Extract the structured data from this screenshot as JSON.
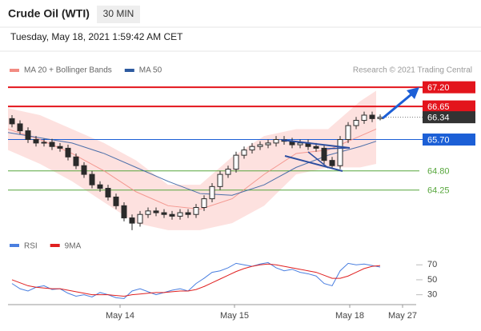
{
  "header": {
    "title": "Crude Oil (WTI)",
    "timeframe": "30 MIN",
    "timestamp": "Tuesday, May 18, 2021 1:59:42 AM CET",
    "credit": "Research © 2021 Trading Central"
  },
  "chart_data": [
    {
      "type": "candlestick",
      "candle_color": "#2a2a2a",
      "x": [
        0,
        1,
        2,
        3,
        4,
        5,
        6,
        7,
        8,
        9,
        10,
        11,
        12,
        13,
        14,
        15,
        16,
        17,
        18,
        19,
        20,
        21,
        22,
        23,
        24,
        25,
        26,
        27,
        28,
        29,
        30,
        31,
        32,
        33,
        34,
        35,
        36,
        37,
        38,
        39,
        40,
        41,
        42,
        43,
        44,
        45,
        46
      ],
      "open": [
        66.3,
        66.15,
        65.95,
        65.7,
        65.6,
        65.62,
        65.5,
        65.45,
        65.2,
        64.95,
        64.7,
        64.4,
        64.3,
        64.05,
        63.8,
        63.45,
        63.3,
        63.55,
        63.65,
        63.6,
        63.55,
        63.5,
        63.6,
        63.55,
        63.75,
        64.0,
        64.35,
        64.7,
        64.85,
        65.25,
        65.4,
        65.5,
        65.55,
        65.6,
        65.7,
        65.65,
        65.55,
        65.6,
        65.5,
        65.45,
        65.1,
        64.95,
        65.7,
        66.1,
        66.25,
        66.4,
        66.3
      ],
      "high": [
        66.4,
        66.25,
        66.05,
        65.8,
        65.72,
        65.72,
        65.6,
        65.55,
        65.3,
        65.05,
        64.8,
        64.5,
        64.4,
        64.15,
        63.9,
        63.55,
        63.65,
        63.75,
        63.75,
        63.7,
        63.65,
        63.7,
        63.7,
        63.85,
        64.1,
        64.45,
        64.8,
        64.95,
        65.35,
        65.5,
        65.6,
        65.65,
        65.7,
        65.8,
        65.8,
        65.75,
        65.7,
        65.7,
        65.6,
        65.55,
        65.2,
        65.8,
        66.2,
        66.35,
        66.5,
        66.5,
        66.42
      ],
      "low": [
        66.05,
        65.85,
        65.6,
        65.5,
        65.5,
        65.4,
        65.35,
        65.1,
        64.85,
        64.6,
        64.3,
        64.2,
        63.95,
        63.7,
        63.35,
        63.1,
        63.2,
        63.45,
        63.5,
        63.45,
        63.4,
        63.4,
        63.45,
        63.45,
        63.65,
        63.9,
        64.25,
        64.6,
        64.75,
        65.15,
        65.3,
        65.4,
        65.45,
        65.5,
        65.55,
        65.45,
        65.45,
        65.4,
        65.35,
        65.0,
        64.85,
        64.85,
        65.6,
        66.0,
        66.15,
        66.2,
        66.25
      ],
      "close": [
        66.15,
        65.95,
        65.7,
        65.6,
        65.62,
        65.5,
        65.45,
        65.2,
        64.95,
        64.7,
        64.4,
        64.3,
        64.05,
        63.8,
        63.45,
        63.3,
        63.55,
        63.65,
        63.6,
        63.55,
        63.5,
        63.6,
        63.55,
        63.75,
        64.0,
        64.35,
        64.7,
        64.85,
        65.25,
        65.4,
        65.5,
        65.55,
        65.6,
        65.7,
        65.65,
        65.55,
        65.6,
        65.5,
        65.45,
        65.1,
        64.95,
        65.7,
        66.1,
        66.25,
        66.4,
        66.3,
        66.34
      ],
      "series": [
        {
          "name": "MA 20 + Bollinger Bands",
          "color": "#f28b82",
          "band_color": "#fde1df",
          "x": [
            0,
            4,
            8,
            12,
            16,
            20,
            24,
            28,
            32,
            36,
            40,
            44,
            46
          ],
          "values": [
            66.0,
            65.7,
            65.3,
            64.8,
            64.2,
            63.8,
            63.7,
            64.0,
            64.7,
            65.3,
            65.4,
            65.8,
            66.0
          ],
          "upper": [
            66.6,
            66.4,
            66.0,
            65.6,
            65.1,
            64.4,
            64.4,
            65.2,
            65.8,
            66.0,
            66.0,
            66.8,
            67.1
          ],
          "lower": [
            65.4,
            65.0,
            64.5,
            63.9,
            63.3,
            63.1,
            63.1,
            63.3,
            63.8,
            64.7,
            64.9,
            64.9,
            65.0
          ]
        },
        {
          "name": "MA 50",
          "color": "#2d5aa0",
          "x": [
            0,
            4,
            8,
            12,
            16,
            20,
            24,
            28,
            32,
            36,
            40,
            44,
            46
          ],
          "values": [
            65.9,
            65.75,
            65.6,
            65.3,
            64.9,
            64.5,
            64.15,
            64.1,
            64.4,
            64.9,
            65.25,
            65.5,
            65.65
          ]
        }
      ],
      "levels": [
        {
          "value": 67.2,
          "label": "67.20",
          "color": "#e3141c",
          "label_box": true
        },
        {
          "value": 66.65,
          "label": "66.65",
          "color": "#e3141c",
          "label_box": true
        },
        {
          "value": 65.7,
          "label": "65.70",
          "color": "#1c5fd6",
          "label_box": true
        },
        {
          "value": 64.8,
          "label": "64.80",
          "color": "#57a63c",
          "label_box": false
        },
        {
          "value": 64.25,
          "label": "64.25",
          "color": "#57a63c",
          "label_box": false
        }
      ],
      "current": {
        "value": 66.34,
        "label": "66.34",
        "color": "#333333"
      },
      "xlim": [
        0,
        51
      ],
      "ylim": [
        63.05,
        67.41
      ],
      "xticks": [
        {
          "value": 14,
          "label": "May 14"
        },
        {
          "value": 28.3,
          "label": "May 15"
        },
        {
          "value": 42.7,
          "label": "May 18"
        },
        {
          "value": 49.3,
          "label": "May 27"
        }
      ]
    },
    {
      "type": "line",
      "xlim": [
        0,
        51
      ],
      "ylim": [
        20,
        82
      ],
      "yticks": [
        30,
        50,
        70
      ],
      "series": [
        {
          "name": "RSI",
          "color": "#4a7fe0",
          "x": [
            0,
            1,
            2,
            3,
            4,
            5,
            6,
            7,
            8,
            9,
            10,
            11,
            12,
            13,
            14,
            15,
            16,
            17,
            18,
            19,
            20,
            21,
            22,
            23,
            24,
            25,
            26,
            27,
            28,
            29,
            30,
            31,
            32,
            33,
            34,
            35,
            36,
            37,
            38,
            39,
            40,
            41,
            42,
            43,
            44,
            45,
            46
          ],
          "values": [
            45,
            38,
            35,
            40,
            42,
            37,
            38,
            32,
            28,
            30,
            27,
            33,
            30,
            26,
            25,
            35,
            38,
            34,
            30,
            33,
            36,
            38,
            35,
            45,
            52,
            60,
            62,
            66,
            72,
            70,
            68,
            71,
            73,
            66,
            62,
            64,
            60,
            58,
            55,
            45,
            42,
            62,
            72,
            70,
            71,
            69,
            67
          ]
        },
        {
          "name": "9MA",
          "color": "#e02020",
          "x": [
            0,
            1,
            2,
            3,
            4,
            5,
            6,
            7,
            8,
            9,
            10,
            11,
            12,
            13,
            14,
            15,
            16,
            17,
            18,
            19,
            20,
            21,
            22,
            23,
            24,
            25,
            26,
            27,
            28,
            29,
            30,
            31,
            32,
            33,
            34,
            35,
            36,
            37,
            38,
            39,
            40,
            41,
            42,
            43,
            44,
            45,
            46
          ],
          "values": [
            50,
            46,
            42,
            40,
            39,
            38,
            38,
            36,
            34,
            32,
            30,
            30,
            30,
            29,
            28,
            30,
            31,
            32,
            33,
            33,
            34,
            35,
            35,
            37,
            41,
            46,
            51,
            56,
            61,
            65,
            68,
            70,
            71,
            70,
            68,
            66,
            64,
            62,
            60,
            56,
            52,
            52,
            55,
            60,
            65,
            68,
            69
          ]
        }
      ]
    }
  ]
}
